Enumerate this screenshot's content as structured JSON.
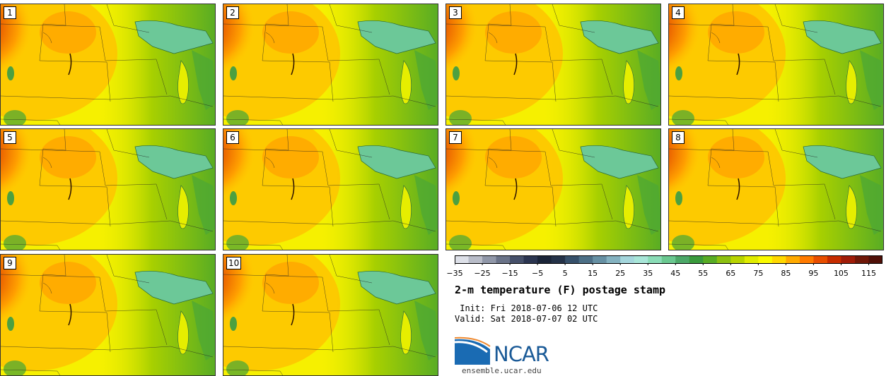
{
  "panels": [
    {
      "label": "1"
    },
    {
      "label": "2"
    },
    {
      "label": "3"
    },
    {
      "label": "4"
    },
    {
      "label": "5"
    },
    {
      "label": "6"
    },
    {
      "label": "7"
    },
    {
      "label": "8"
    },
    {
      "label": "9"
    },
    {
      "label": "10"
    }
  ],
  "colorbar": {
    "min": -35,
    "max": 120,
    "step": 5,
    "tick_labels": [
      "−35",
      "−25",
      "−15",
      "−5",
      "5",
      "15",
      "25",
      "35",
      "45",
      "55",
      "65",
      "75",
      "85",
      "95",
      "105",
      "115"
    ],
    "colors": [
      "#dde0e8",
      "#b8bcc8",
      "#9097a8",
      "#6a7388",
      "#46506a",
      "#2b3550",
      "#1a2438",
      "#243248",
      "#36506a",
      "#4c6f86",
      "#6690a3",
      "#84b2c0",
      "#a4d6dc",
      "#a8e6d8",
      "#8adcb6",
      "#6ac890",
      "#4ca868",
      "#3a9a3c",
      "#58ac24",
      "#8cc010",
      "#b8d400",
      "#e0ec00",
      "#fafa00",
      "#ffd800",
      "#ffaa00",
      "#ff7a00",
      "#e84e00",
      "#c62c00",
      "#a01c08",
      "#701808",
      "#501008"
    ]
  },
  "title": "2-m temperature (F) postage stamp",
  "init": " Init: Fri 2018-07-06 12 UTC",
  "valid": "Valid: Sat 2018-07-07 02 UTC",
  "logo": {
    "text": "NCAR",
    "site": "ensemble.ucar.edu"
  }
}
